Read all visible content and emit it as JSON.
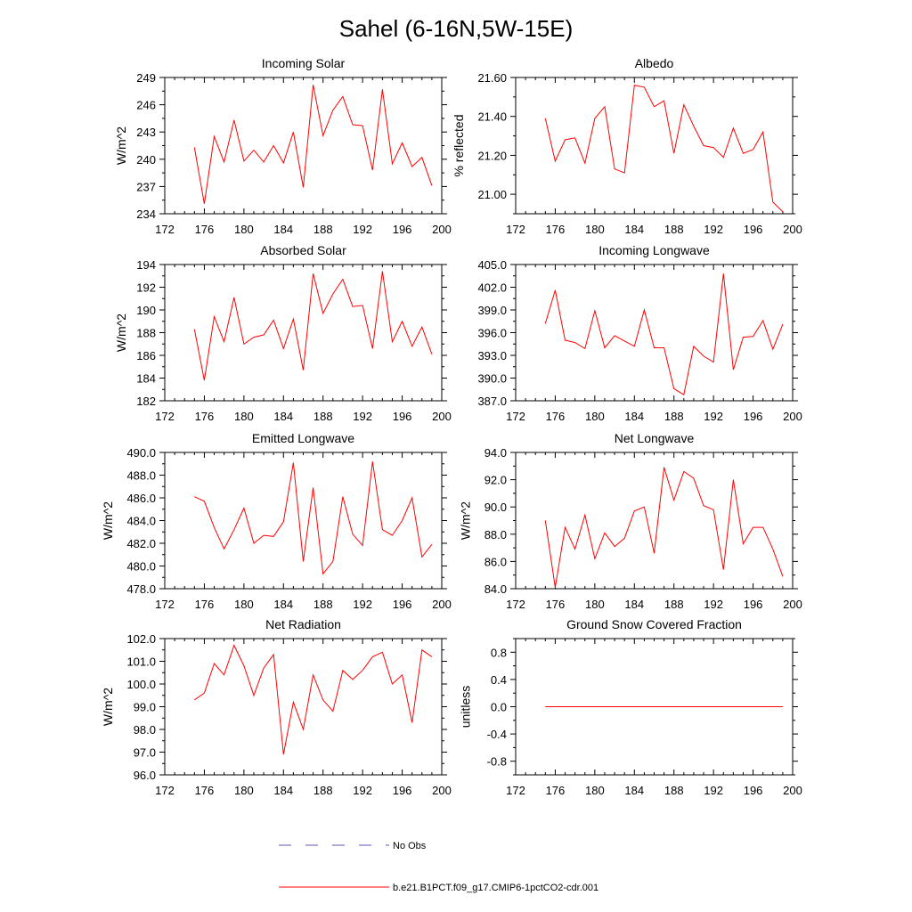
{
  "figure": {
    "title": "Sahel (6-16N,5W-15E)",
    "line_color": "#ff0000",
    "obs_color": "#5a5ab4"
  },
  "legend": {
    "entries": [
      {
        "label": "No Obs",
        "style": "dashed",
        "color": "#5a5ab4"
      },
      {
        "label": "b.e21.B1PCT.f09_g17.CMIP6-1pctCO2-cdr.001",
        "style": "solid",
        "color": "#ff0000"
      }
    ]
  },
  "chart_data": [
    {
      "type": "line",
      "title": "Incoming Solar",
      "xlabel": "",
      "ylabel": "W/m^2",
      "xlim": [
        172,
        200
      ],
      "ylim": [
        234,
        249
      ],
      "xticks": [
        172,
        176,
        180,
        184,
        188,
        192,
        196,
        200
      ],
      "xtick_labels": [
        "172",
        "176",
        "180",
        "184",
        "188",
        "192",
        "196",
        "200"
      ],
      "yticks": [
        234,
        237,
        240,
        243,
        246,
        249
      ],
      "ytick_labels": [
        "234",
        "237",
        "240",
        "243",
        "246",
        "249"
      ],
      "grid": false,
      "series": [
        {
          "x": [
            175,
            176,
            177,
            178,
            179,
            180,
            181,
            182,
            183,
            184,
            185,
            186,
            187,
            188,
            189,
            190,
            191,
            192,
            193,
            194,
            195,
            196,
            197,
            198,
            199
          ],
          "values": [
            241.3,
            235.1,
            242.5,
            239.7,
            244.3,
            239.8,
            241.0,
            239.7,
            241.5,
            239.6,
            243.0,
            236.9,
            248.2,
            242.6,
            245.4,
            246.9,
            243.8,
            243.7,
            238.8,
            247.7,
            239.5,
            241.8,
            239.2,
            240.2,
            237.1
          ]
        }
      ]
    },
    {
      "type": "line",
      "title": "Albedo",
      "xlabel": "",
      "ylabel": "% reflected",
      "xlim": [
        172,
        200
      ],
      "ylim": [
        20.9,
        21.6
      ],
      "xticks": [
        172,
        176,
        180,
        184,
        188,
        192,
        196,
        200
      ],
      "xtick_labels": [
        "172",
        "176",
        "180",
        "184",
        "188",
        "192",
        "196",
        "200"
      ],
      "yticks": [
        21.0,
        21.2,
        21.4,
        21.6
      ],
      "ytick_labels": [
        "21.00",
        "21.20",
        "21.40",
        "21.60"
      ],
      "grid": false,
      "series": [
        {
          "x": [
            175,
            176,
            177,
            178,
            179,
            180,
            181,
            182,
            183,
            184,
            185,
            186,
            187,
            188,
            189,
            190,
            191,
            192,
            193,
            194,
            195,
            196,
            197,
            198,
            199
          ],
          "values": [
            21.39,
            21.17,
            21.28,
            21.29,
            21.16,
            21.39,
            21.45,
            21.13,
            21.11,
            21.56,
            21.55,
            21.45,
            21.48,
            21.21,
            21.46,
            21.35,
            21.25,
            21.24,
            21.19,
            21.34,
            21.21,
            21.23,
            21.32,
            20.96,
            20.91
          ]
        }
      ]
    },
    {
      "type": "line",
      "title": "Absorbed Solar",
      "xlabel": "",
      "ylabel": "W/m^2",
      "xlim": [
        172,
        200
      ],
      "ylim": [
        182,
        194
      ],
      "xticks": [
        172,
        176,
        180,
        184,
        188,
        192,
        196,
        200
      ],
      "xtick_labels": [
        "172",
        "176",
        "180",
        "184",
        "188",
        "192",
        "196",
        "200"
      ],
      "yticks": [
        182,
        184,
        186,
        188,
        190,
        192,
        194
      ],
      "ytick_labels": [
        "182",
        "184",
        "186",
        "188",
        "190",
        "192",
        "194"
      ],
      "grid": false,
      "series": [
        {
          "x": [
            175,
            176,
            177,
            178,
            179,
            180,
            181,
            182,
            183,
            184,
            185,
            186,
            187,
            188,
            189,
            190,
            191,
            192,
            193,
            194,
            195,
            196,
            197,
            198,
            199
          ],
          "values": [
            188.3,
            183.8,
            189.4,
            187.2,
            191.1,
            187.0,
            187.6,
            187.8,
            189.1,
            186.6,
            189.2,
            184.7,
            193.2,
            189.7,
            191.4,
            192.7,
            190.3,
            190.4,
            186.6,
            193.4,
            187.2,
            189.0,
            186.8,
            188.5,
            186.1
          ]
        }
      ]
    },
    {
      "type": "line",
      "title": "Incoming Longwave",
      "xlabel": "",
      "ylabel": "",
      "xlim": [
        172,
        200
      ],
      "ylim": [
        387,
        405
      ],
      "xticks": [
        172,
        176,
        180,
        184,
        188,
        192,
        196,
        200
      ],
      "xtick_labels": [
        "172",
        "176",
        "180",
        "184",
        "188",
        "192",
        "196",
        "200"
      ],
      "yticks": [
        387,
        390,
        393,
        396,
        399,
        402,
        405
      ],
      "ytick_labels": [
        "387.0",
        "390.0",
        "393.0",
        "396.0",
        "399.0",
        "402.0",
        "405.0"
      ],
      "grid": false,
      "series": [
        {
          "x": [
            175,
            176,
            177,
            178,
            179,
            180,
            181,
            182,
            183,
            184,
            185,
            186,
            187,
            188,
            189,
            190,
            191,
            192,
            193,
            194,
            195,
            196,
            197,
            198,
            199
          ],
          "values": [
            397.2,
            401.6,
            395.0,
            394.7,
            393.9,
            398.9,
            394.0,
            395.6,
            394.9,
            394.2,
            399.0,
            394.0,
            394.0,
            388.6,
            387.8,
            394.2,
            392.9,
            392.1,
            403.8,
            391.1,
            395.4,
            395.5,
            397.6,
            393.8,
            397.1
          ]
        }
      ]
    },
    {
      "type": "line",
      "title": "Emitted Longwave",
      "xlabel": "",
      "ylabel": "W/m^2",
      "xlim": [
        172,
        200
      ],
      "ylim": [
        478,
        490
      ],
      "xticks": [
        172,
        176,
        180,
        184,
        188,
        192,
        196,
        200
      ],
      "xtick_labels": [
        "172",
        "176",
        "180",
        "184",
        "188",
        "192",
        "196",
        "200"
      ],
      "yticks": [
        478,
        480,
        482,
        484,
        486,
        488,
        490
      ],
      "ytick_labels": [
        "478.0",
        "480.0",
        "482.0",
        "484.0",
        "486.0",
        "488.0",
        "490.0"
      ],
      "grid": false,
      "series": [
        {
          "x": [
            175,
            176,
            177,
            178,
            179,
            180,
            181,
            182,
            183,
            184,
            185,
            186,
            187,
            188,
            189,
            190,
            191,
            192,
            193,
            194,
            195,
            196,
            197,
            198,
            199
          ],
          "values": [
            486.1,
            485.7,
            483.4,
            481.5,
            483.2,
            485.1,
            482.0,
            482.7,
            482.6,
            483.9,
            489.1,
            480.4,
            486.9,
            479.3,
            480.4,
            486.1,
            482.8,
            481.8,
            489.2,
            483.2,
            482.7,
            484.0,
            486.0,
            480.8,
            481.9
          ]
        }
      ]
    },
    {
      "type": "line",
      "title": "Net Longwave",
      "xlabel": "",
      "ylabel": "W/m^2",
      "xlim": [
        172,
        200
      ],
      "ylim": [
        84,
        94
      ],
      "xticks": [
        172,
        176,
        180,
        184,
        188,
        192,
        196,
        200
      ],
      "xtick_labels": [
        "172",
        "176",
        "180",
        "184",
        "188",
        "192",
        "196",
        "200"
      ],
      "yticks": [
        84,
        86,
        88,
        90,
        92,
        94
      ],
      "ytick_labels": [
        "84.0",
        "86.0",
        "88.0",
        "90.0",
        "92.0",
        "94.0"
      ],
      "grid": false,
      "series": [
        {
          "x": [
            175,
            176,
            177,
            178,
            179,
            180,
            181,
            182,
            183,
            184,
            185,
            186,
            187,
            188,
            189,
            190,
            191,
            192,
            193,
            194,
            195,
            196,
            197,
            198,
            199
          ],
          "values": [
            89.0,
            84.1,
            88.5,
            86.9,
            89.4,
            86.2,
            88.1,
            87.1,
            87.7,
            89.7,
            90.0,
            86.6,
            92.9,
            90.5,
            92.6,
            92.1,
            90.1,
            89.8,
            85.4,
            92.0,
            87.3,
            88.5,
            88.5,
            86.9,
            84.9
          ]
        }
      ]
    },
    {
      "type": "line",
      "title": "Net Radiation",
      "xlabel": "",
      "ylabel": "W/m^2",
      "xlim": [
        172,
        200
      ],
      "ylim": [
        96,
        102
      ],
      "xticks": [
        172,
        176,
        180,
        184,
        188,
        192,
        196,
        200
      ],
      "xtick_labels": [
        "172",
        "176",
        "180",
        "184",
        "188",
        "192",
        "196",
        "200"
      ],
      "yticks": [
        96,
        97,
        98,
        99,
        100,
        101,
        102
      ],
      "ytick_labels": [
        "96.0",
        "97.0",
        "98.0",
        "99.0",
        "100.0",
        "101.0",
        "102.0"
      ],
      "grid": false,
      "series": [
        {
          "x": [
            175,
            176,
            177,
            178,
            179,
            180,
            181,
            182,
            183,
            184,
            185,
            186,
            187,
            188,
            189,
            190,
            191,
            192,
            193,
            194,
            195,
            196,
            197,
            198,
            199
          ],
          "values": [
            99.3,
            99.6,
            100.9,
            100.4,
            101.7,
            100.8,
            99.5,
            100.7,
            101.3,
            96.9,
            99.2,
            98.0,
            100.4,
            99.3,
            98.8,
            100.6,
            100.2,
            100.6,
            101.2,
            101.4,
            100.0,
            100.4,
            98.3,
            101.5,
            101.2
          ]
        }
      ]
    },
    {
      "type": "line",
      "title": "Ground Snow Covered Fraction",
      "xlabel": "",
      "ylabel": "unitless",
      "xlim": [
        172,
        200
      ],
      "ylim": [
        -1.0,
        1.0
      ],
      "xticks": [
        172,
        176,
        180,
        184,
        188,
        192,
        196,
        200
      ],
      "xtick_labels": [
        "172",
        "176",
        "180",
        "184",
        "188",
        "192",
        "196",
        "200"
      ],
      "yticks": [
        -0.8,
        -0.4,
        0.0,
        0.4,
        0.8
      ],
      "ytick_labels": [
        "-0.8",
        "-0.4",
        "0.0",
        "0.4",
        "0.8"
      ],
      "grid": false,
      "series": [
        {
          "x": [
            175,
            176,
            177,
            178,
            179,
            180,
            181,
            182,
            183,
            184,
            185,
            186,
            187,
            188,
            189,
            190,
            191,
            192,
            193,
            194,
            195,
            196,
            197,
            198,
            199
          ],
          "values": [
            0,
            0,
            0,
            0,
            0,
            0,
            0,
            0,
            0,
            0,
            0,
            0,
            0,
            0,
            0,
            0,
            0,
            0,
            0,
            0,
            0,
            0,
            0,
            0,
            0
          ]
        }
      ]
    }
  ]
}
